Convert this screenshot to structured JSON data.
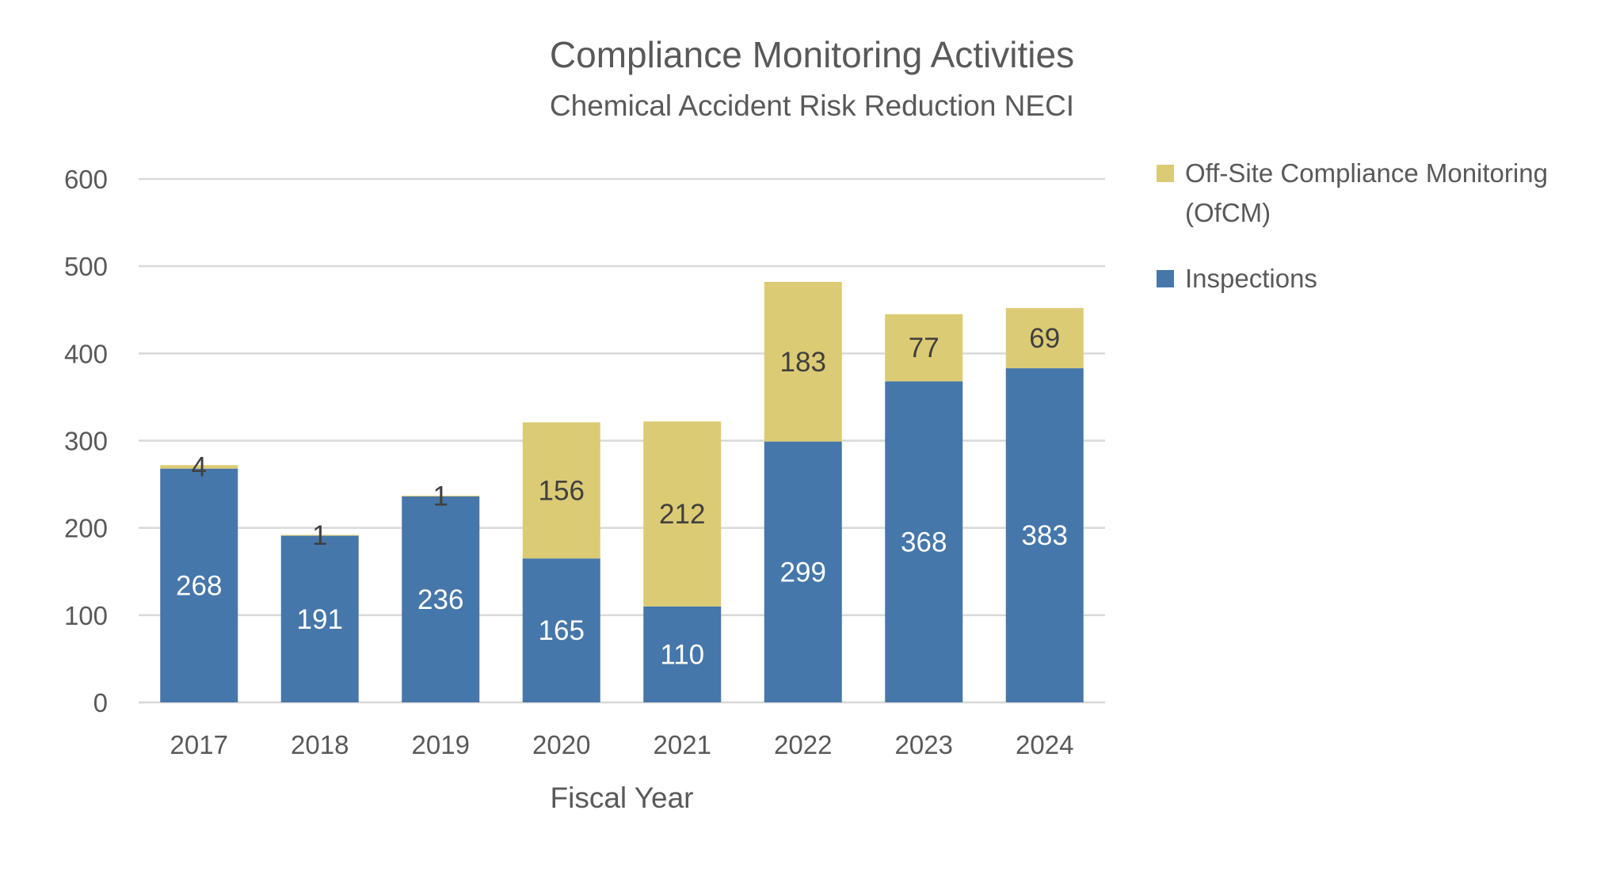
{
  "chart_data": {
    "type": "bar",
    "stacked": true,
    "title": "Compliance Monitoring Activities",
    "subtitle": "Chemical Accident Risk Reduction NECI",
    "xlabel": "Fiscal Year",
    "ylabel": "",
    "ylim": [
      0,
      600
    ],
    "yticks": [
      0,
      100,
      200,
      300,
      400,
      500,
      600
    ],
    "grid": true,
    "legend_position": "right",
    "categories": [
      "2017",
      "2018",
      "2019",
      "2020",
      "2021",
      "2022",
      "2023",
      "2024"
    ],
    "series": [
      {
        "name": "Inspections",
        "color": "#4677aa",
        "values": [
          268,
          191,
          236,
          165,
          110,
          299,
          368,
          383
        ]
      },
      {
        "name": "Off-Site Compliance Monitoring (OfCM)",
        "color": "#dccb75",
        "values": [
          4,
          1,
          1,
          156,
          212,
          183,
          77,
          69
        ]
      }
    ],
    "legend": [
      {
        "lines": [
          "Off-Site Compliance Monitoring",
          "(OfCM)"
        ],
        "color": "#dccb75"
      },
      {
        "lines": [
          "Inspections"
        ],
        "color": "#4677aa"
      }
    ]
  }
}
